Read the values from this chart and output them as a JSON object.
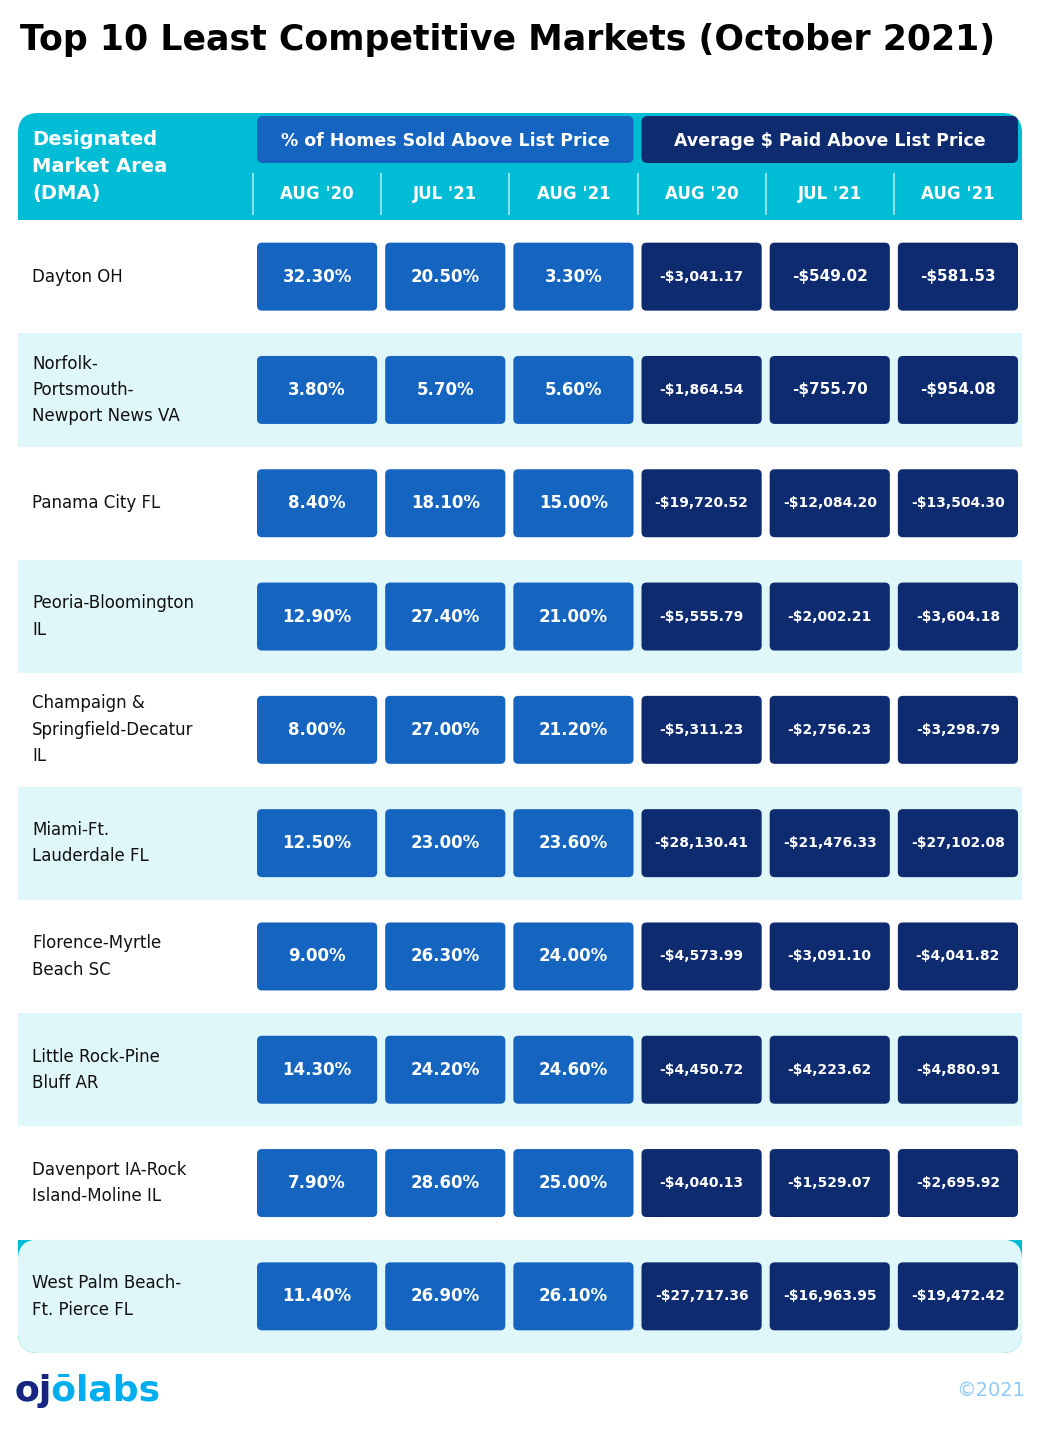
{
  "title": "Top 10 Least Competitive Markets (October 2021)",
  "header_col1": "Designated\nMarket Area\n(DMA)",
  "header_group1": "% of Homes Sold Above List Price",
  "header_group2": "Average $ Paid Above List Price",
  "subheaders": [
    "AUG '20",
    "JUL '21",
    "AUG '21",
    "AUG '20",
    "JUL '21",
    "AUG '21"
  ],
  "rows": [
    {
      "dma": "Dayton OH",
      "values": [
        "32.30%",
        "20.50%",
        "3.30%",
        "-$3,041.17",
        "-$549.02",
        "-$581.53"
      ],
      "bg": "white"
    },
    {
      "dma": "Norfolk-\nPortsmouth-\nNewport News VA",
      "values": [
        "3.80%",
        "5.70%",
        "5.60%",
        "-$1,864.54",
        "-$755.70",
        "-$954.08"
      ],
      "bg": "lightblue"
    },
    {
      "dma": "Panama City FL",
      "values": [
        "8.40%",
        "18.10%",
        "15.00%",
        "-$19,720.52",
        "-$12,084.20",
        "-$13,504.30"
      ],
      "bg": "white"
    },
    {
      "dma": "Peoria-Bloomington\nIL",
      "values": [
        "12.90%",
        "27.40%",
        "21.00%",
        "-$5,555.79",
        "-$2,002.21",
        "-$3,604.18"
      ],
      "bg": "lightblue"
    },
    {
      "dma": "Champaign &\nSpringfield-Decatur\nIL",
      "values": [
        "8.00%",
        "27.00%",
        "21.20%",
        "-$5,311.23",
        "-$2,756.23",
        "-$3,298.79"
      ],
      "bg": "white"
    },
    {
      "dma": "Miami-Ft.\nLauderdale FL",
      "values": [
        "12.50%",
        "23.00%",
        "23.60%",
        "-$28,130.41",
        "-$21,476.33",
        "-$27,102.08"
      ],
      "bg": "lightblue"
    },
    {
      "dma": "Florence-Myrtle\nBeach SC",
      "values": [
        "9.00%",
        "26.30%",
        "24.00%",
        "-$4,573.99",
        "-$3,091.10",
        "-$4,041.82"
      ],
      "bg": "white"
    },
    {
      "dma": "Little Rock-Pine\nBluff AR",
      "values": [
        "14.30%",
        "24.20%",
        "24.60%",
        "-$4,450.72",
        "-$4,223.62",
        "-$4,880.91"
      ],
      "bg": "lightblue"
    },
    {
      "dma": "Davenport IA-Rock\nIsland-Moline IL",
      "values": [
        "7.90%",
        "28.60%",
        "25.00%",
        "-$4,040.13",
        "-$1,529.07",
        "-$2,695.92"
      ],
      "bg": "white"
    },
    {
      "dma": "West Palm Beach-\nFt. Pierce FL",
      "values": [
        "11.40%",
        "26.90%",
        "26.10%",
        "-$27,717.36",
        "-$16,963.95",
        "-$19,472.42"
      ],
      "bg": "lightblue"
    }
  ],
  "colors": {
    "title_color": "#000000",
    "table_bg": "#00BCD4",
    "header_group1_bg": "#1565C0",
    "header_group2_bg": "#0D2B6E",
    "cell_blue": "#1565C0",
    "cell_dark_blue": "#0D2B6E",
    "row_white": "#FFFFFF",
    "row_light_blue": "#E0F7FA",
    "text_white": "#FFFFFF",
    "text_dark": "#111111",
    "subheader_text": "#FFFFFF",
    "header_dma_text": "#FFFFFF",
    "ojo_blue": "#00AEEF",
    "ojo_dark": "#1A237E",
    "copyright_color": "#90CAF9"
  }
}
